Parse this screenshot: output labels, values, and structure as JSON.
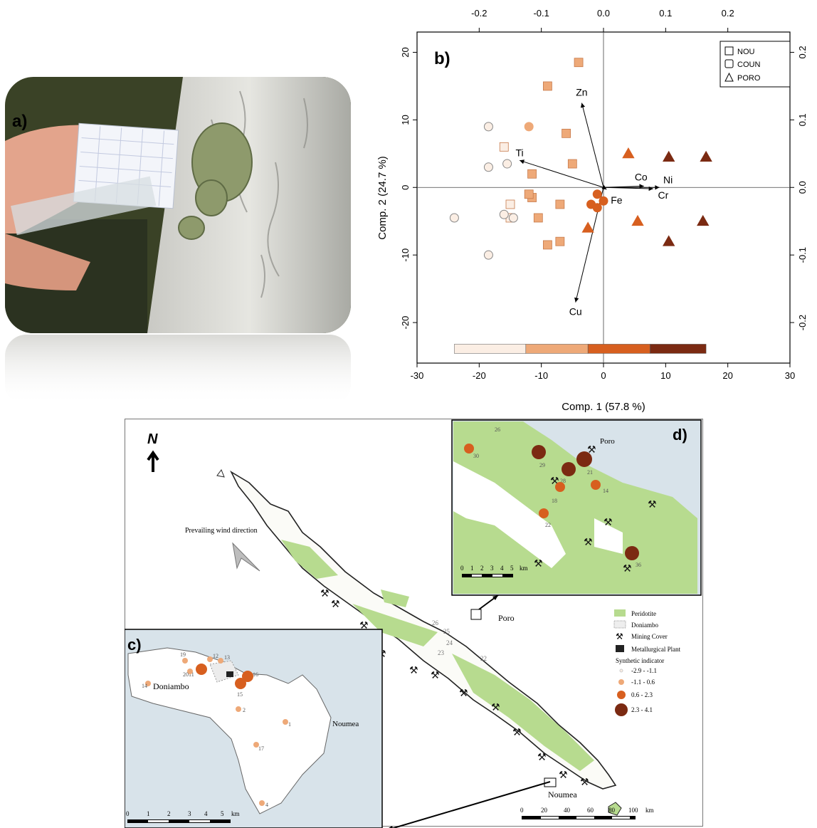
{
  "panels": {
    "a": "a)",
    "b": "b)",
    "c": "c)",
    "d": "d)"
  },
  "pca": {
    "legend": [
      "NOU",
      "COUN",
      "PORO"
    ],
    "xlabel": "Comp. 1 (57.8 %)",
    "ylabel": "Comp. 2 (24.7 %)",
    "xticks": [
      "-30",
      "-20",
      "-10",
      "0",
      "10",
      "20",
      "30"
    ],
    "yticks": [
      "-20",
      "-10",
      "0",
      "10",
      "20"
    ],
    "topticks": [
      "-0.2",
      "-0.1",
      "0.0",
      "0.1",
      "0.2"
    ],
    "rightticks": [
      "-0.2",
      "-0.1",
      "0.0",
      "0.1",
      "0.2"
    ],
    "loadings": [
      {
        "name": "Zn",
        "x": -0.035,
        "y": 0.125
      },
      {
        "name": "Ti",
        "x": -0.135,
        "y": 0.04
      },
      {
        "name": "Co",
        "x": 0.065,
        "y": 0.002
      },
      {
        "name": "Ni",
        "x": 0.09,
        "y": 0.0
      },
      {
        "name": "Cr",
        "x": 0.08,
        "y": -0.002
      },
      {
        "name": "Fe",
        "x": 0.005,
        "y": -0.003
      },
      {
        "name": "Cu",
        "x": -0.045,
        "y": -0.17
      }
    ],
    "colors": [
      "#fbeee4",
      "#eea978",
      "#d75f1f",
      "#7b2a12"
    ]
  },
  "chart_data": {
    "type": "scatter",
    "xlabel": "Comp. 1 (57.8 %)",
    "ylabel": "Comp. 2 (24.7 %)",
    "xlim": [
      -30,
      30
    ],
    "ylim": [
      -26,
      23
    ],
    "series": [
      {
        "name": "NOU",
        "points": [
          [
            -9,
            15
          ],
          [
            -4,
            18.5
          ],
          [
            -6,
            8
          ],
          [
            -5,
            3.5
          ],
          [
            -11.5,
            2
          ],
          [
            -7,
            -2.5
          ],
          [
            -11.5,
            -1.5
          ],
          [
            -10.5,
            -4.5
          ],
          [
            -7,
            -8
          ],
          [
            -9,
            -8.5
          ],
          [
            -16,
            6
          ],
          [
            -15,
            -2.5
          ],
          [
            -15,
            -4.5
          ],
          [
            -12,
            -1
          ]
        ]
      },
      {
        "name": "COUN",
        "points": [
          [
            -18.5,
            9
          ],
          [
            -18.5,
            3
          ],
          [
            -15.5,
            3.5
          ],
          [
            -24,
            -4.5
          ],
          [
            -18.5,
            -10
          ],
          [
            -16,
            -4
          ],
          [
            -14.5,
            -4.5
          ],
          [
            -12,
            9
          ],
          [
            -1,
            -1
          ],
          [
            0,
            -2
          ],
          [
            -2,
            -2.5
          ],
          [
            -1,
            -3
          ]
        ]
      },
      {
        "name": "PORO",
        "points": [
          [
            4,
            5
          ],
          [
            10.5,
            4.5
          ],
          [
            16.5,
            4.5
          ],
          [
            5.5,
            -5
          ],
          [
            16,
            -5
          ],
          [
            10.5,
            -8
          ],
          [
            -2.5,
            -6
          ]
        ]
      }
    ]
  },
  "map": {
    "north": "N",
    "wind": "Prevailing wind direction",
    "poro": "Poro",
    "noumea": "Noumea",
    "doniambo": "Doniambo",
    "legend": [
      "Peridotite",
      "Doniambo",
      "Mining Cover",
      "Metallurgical Plant",
      "Synthetic indicator",
      "-2.9 - -1.1",
      "-1.1 - 0.6",
      "0.6 - 2.3",
      "2.3 - 4.1"
    ],
    "scale_main": [
      "0",
      "20",
      "40",
      "60",
      "80",
      "100",
      "km"
    ],
    "scale_c": [
      "0",
      "1",
      "2",
      "3",
      "4",
      "5",
      "km"
    ],
    "scale_d": [
      "0",
      "1",
      "2",
      "3",
      "4",
      "5",
      "km"
    ],
    "c_labels": [
      "19",
      "12",
      "13",
      "11",
      "20",
      "16",
      "15",
      "14",
      "2",
      "1",
      "17",
      "4"
    ],
    "d_labels": [
      "30",
      "29",
      "21",
      "28",
      "18",
      "14",
      "22",
      "36",
      "26"
    ],
    "main_labels": [
      "26",
      "25",
      "24",
      "23",
      "22"
    ]
  }
}
